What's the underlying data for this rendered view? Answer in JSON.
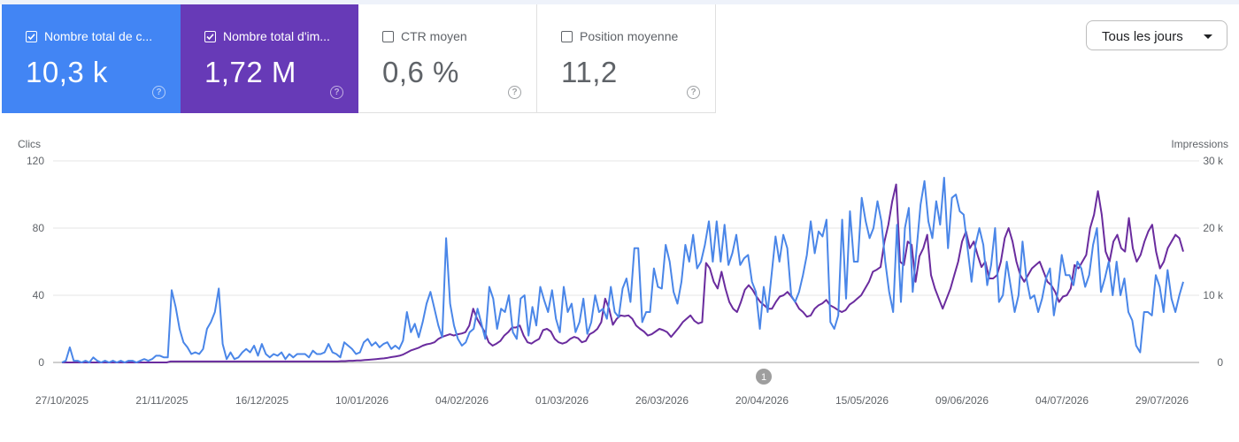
{
  "metrics": [
    {
      "label": "Nombre total de c...",
      "value": "10,3 k",
      "checked": true,
      "color": "#4285f4"
    },
    {
      "label": "Nombre total d'im...",
      "value": "1,72 M",
      "checked": true,
      "color": "#673ab7"
    },
    {
      "label": "CTR moyen",
      "value": "0,6 %",
      "checked": false
    },
    {
      "label": "Position moyenne",
      "value": "11,2",
      "checked": false
    }
  ],
  "help_icon": "?",
  "date_range": {
    "label": "Tous les jours"
  },
  "annotation_marker": "1",
  "chart_data": {
    "type": "line",
    "left_axis": {
      "title": "Clics",
      "ticks": [
        "0",
        "40",
        "80",
        "120"
      ],
      "ylim": [
        0,
        120
      ]
    },
    "right_axis": {
      "title": "Impressions",
      "ticks": [
        "0",
        "10 k",
        "20 k",
        "30 k"
      ],
      "ylim": [
        0,
        30000
      ]
    },
    "x_tick_labels": [
      "27/10/2025",
      "21/11/2025",
      "16/12/2025",
      "10/01/2026",
      "04/02/2026",
      "01/03/2026",
      "26/03/2026",
      "20/04/2026",
      "15/05/2026",
      "09/06/2026",
      "04/07/2026",
      "29/07/2026"
    ],
    "series": [
      {
        "name": "Nombre total de clics",
        "axis": "left",
        "color": "#4a86e8",
        "values": [
          0,
          1,
          9,
          1,
          1,
          0,
          1,
          0,
          3,
          1,
          0,
          1,
          0,
          1,
          0,
          1,
          0,
          1,
          1,
          0,
          1,
          2,
          1,
          2,
          4,
          4,
          3,
          3,
          43,
          33,
          20,
          12,
          9,
          5,
          6,
          5,
          8,
          20,
          24,
          30,
          44,
          11,
          2,
          6,
          2,
          3,
          6,
          8,
          6,
          10,
          4,
          11,
          5,
          3,
          5,
          4,
          6,
          2,
          5,
          3,
          5,
          5,
          5,
          3,
          7,
          5,
          5,
          6,
          11,
          6,
          5,
          3,
          12,
          10,
          8,
          5,
          6,
          12,
          14,
          10,
          12,
          9,
          11,
          12,
          8,
          10,
          8,
          13,
          30,
          18,
          23,
          15,
          24,
          35,
          42,
          32,
          22,
          15,
          74,
          35,
          22,
          14,
          10,
          12,
          18,
          20,
          32,
          23,
          14,
          45,
          38,
          20,
          32,
          30,
          40,
          18,
          14,
          38,
          40,
          16,
          33,
          22,
          45,
          37,
          30,
          43,
          26,
          18,
          45,
          30,
          35,
          18,
          24,
          38,
          17,
          24,
          40,
          30,
          32,
          26,
          45,
          30,
          27,
          44,
          50,
          36,
          68,
          68,
          24,
          30,
          30,
          56,
          45,
          44,
          70,
          60,
          42,
          35,
          48,
          70,
          60,
          76,
          56,
          60,
          70,
          84,
          60,
          84,
          60,
          82,
          58,
          65,
          76,
          58,
          62,
          64,
          48,
          42,
          20,
          45,
          30,
          52,
          75,
          60,
          76,
          68,
          40,
          36,
          42,
          52,
          64,
          84,
          65,
          78,
          75,
          85,
          24,
          20,
          28,
          85,
          38,
          90,
          60,
          60,
          98,
          84,
          74,
          80,
          96,
          84,
          60,
          42,
          30,
          82,
          36,
          80,
          92,
          42,
          68,
          94,
          108,
          84,
          74,
          96,
          82,
          110,
          68,
          98,
          100,
          90,
          88,
          68,
          48,
          70,
          80,
          70,
          46,
          58,
          80,
          36,
          40,
          60,
          45,
          30,
          40,
          72,
          50,
          38,
          40,
          30,
          38,
          50,
          56,
          28,
          42,
          64,
          52,
          52,
          46,
          60,
          56,
          45,
          52,
          70,
          80,
          42,
          50,
          60,
          40,
          60,
          40,
          50,
          30,
          25,
          10,
          6,
          30,
          30,
          28,
          52,
          45,
          30,
          55,
          38,
          30,
          40,
          48
        ]
      },
      {
        "name": "Nombre total d'impressions",
        "axis": "right",
        "color": "#6a2c9e",
        "values": [
          0,
          0,
          0,
          0,
          0,
          0,
          0,
          0,
          0,
          0,
          0,
          0,
          0,
          0,
          0,
          0,
          0,
          0,
          0,
          0,
          0,
          0,
          0,
          0,
          0,
          0,
          0,
          0,
          150,
          150,
          150,
          150,
          150,
          150,
          150,
          150,
          150,
          150,
          150,
          150,
          150,
          150,
          150,
          150,
          150,
          150,
          150,
          150,
          150,
          150,
          150,
          150,
          150,
          150,
          150,
          150,
          150,
          150,
          150,
          150,
          150,
          150,
          150,
          150,
          150,
          150,
          150,
          150,
          150,
          150,
          150,
          150,
          200,
          200,
          250,
          250,
          300,
          300,
          350,
          400,
          450,
          500,
          550,
          600,
          700,
          800,
          900,
          1000,
          1200,
          1500,
          1800,
          2000,
          2200,
          2500,
          2700,
          2800,
          3000,
          3500,
          3800,
          4000,
          4200,
          4000,
          4200,
          4300,
          4500,
          5500,
          8000,
          6500,
          5500,
          4500,
          3000,
          2500,
          2800,
          3200,
          4000,
          4500,
          5200,
          5200,
          5500,
          4000,
          3000,
          2800,
          3200,
          3500,
          4800,
          5000,
          4600,
          3500,
          3000,
          2800,
          3000,
          3500,
          3800,
          3600,
          3000,
          3200,
          4200,
          4500,
          5000,
          6000,
          9500,
          8000,
          5600,
          6500,
          7000,
          6900,
          7000,
          6500,
          5500,
          5000,
          4600,
          4000,
          4200,
          4600,
          5000,
          4800,
          4500,
          3800,
          4500,
          5200,
          6000,
          6500,
          7000,
          6200,
          5800,
          6000,
          14800,
          14000,
          12000,
          11000,
          13500,
          11000,
          9000,
          8000,
          7500,
          9000,
          10800,
          11500,
          10800,
          9800,
          9000,
          8500,
          8000,
          8000,
          9000,
          9800,
          10000,
          10500,
          9800,
          9000,
          8000,
          7500,
          6800,
          7000,
          8000,
          8500,
          8800,
          9300,
          8500,
          8200,
          7800,
          7500,
          7800,
          8600,
          9000,
          9500,
          10000,
          11000,
          12000,
          13500,
          13800,
          14200,
          18000,
          20500,
          24000,
          26500,
          15000,
          14500,
          18000,
          17500,
          12000,
          15800,
          17000,
          19000,
          13000,
          11000,
          9500,
          8000,
          9500,
          11000,
          13000,
          15000,
          18000,
          19500,
          17000,
          18000,
          16000,
          14200,
          15000,
          12500,
          12500,
          13000,
          15000,
          18500,
          20000,
          18000,
          15000,
          13000,
          12000,
          13000,
          14000,
          14500,
          15000,
          13500,
          12000,
          11500,
          10500,
          9000,
          9800,
          10000,
          11000,
          14500,
          14000,
          15000,
          16000,
          20000,
          22000,
          25500,
          22000,
          16500,
          15000,
          18000,
          19000,
          17000,
          16500,
          21500,
          17000,
          15000,
          16000,
          18000,
          19500,
          20500,
          16500,
          14000,
          15000,
          17000,
          18000,
          19000,
          18500,
          16500
        ]
      }
    ]
  }
}
